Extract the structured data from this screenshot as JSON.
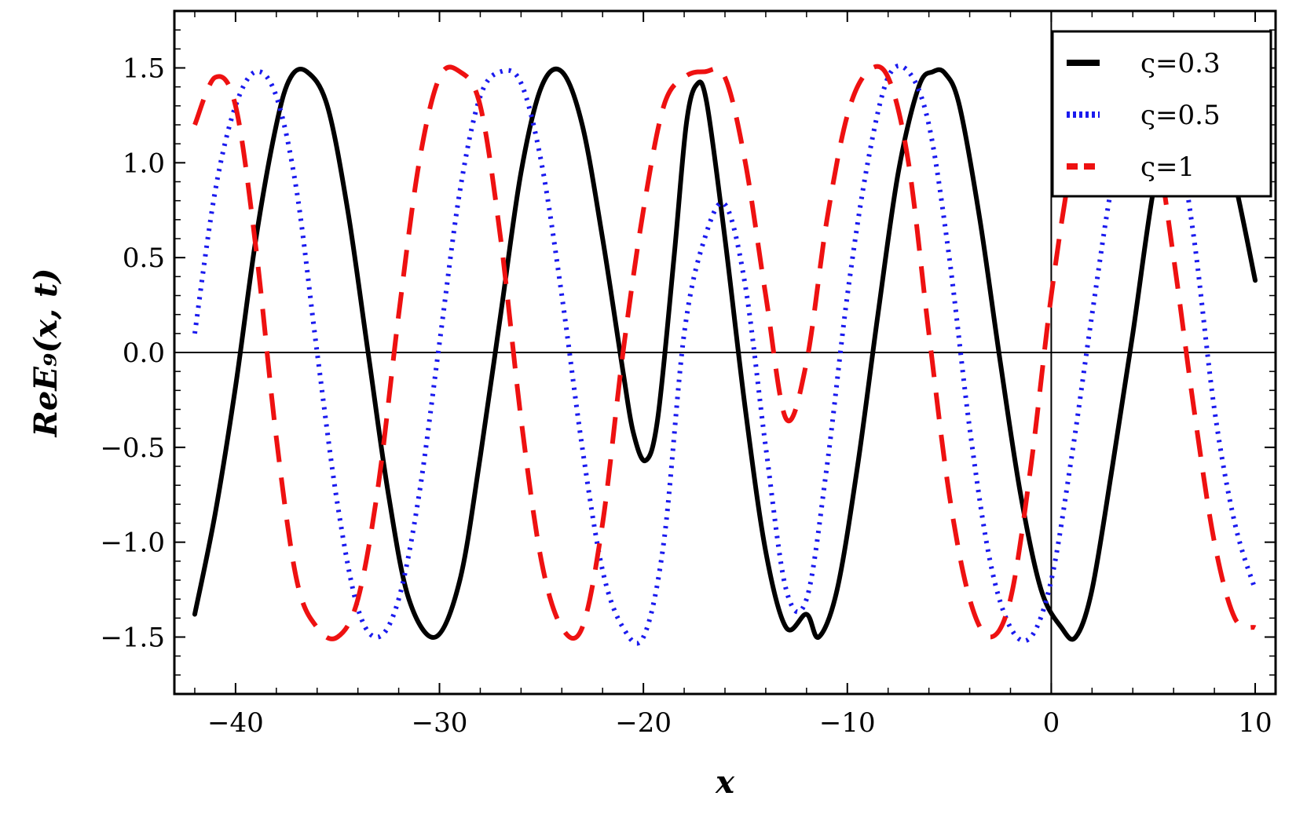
{
  "chart_data": {
    "type": "line",
    "title": "",
    "xlabel": "x",
    "ylabel": "ReE₉(x, t)",
    "xlim": [
      -43,
      11
    ],
    "ylim": [
      -1.8,
      1.8
    ],
    "x_ticks": [
      -40,
      -30,
      -20,
      -10,
      0,
      10
    ],
    "x_tick_labels": [
      "−40",
      "−30",
      "−20",
      "−10",
      "0",
      "10"
    ],
    "y_ticks": [
      1.5,
      1.0,
      0.5,
      0.0,
      -0.5,
      -1.0,
      -1.5
    ],
    "y_tick_labels": [
      "1.5",
      "1.0",
      "0.5",
      "0.0",
      "−0.5",
      "−1.0",
      "−1.5"
    ],
    "grid": false,
    "legend_position": "top-right",
    "series": [
      {
        "name": "ς=0.3",
        "color": "#000000",
        "style": "solid",
        "x": [
          -42.0,
          -41.0,
          -40.0,
          -39.0,
          -38.0,
          -37.3,
          -36.5,
          -35.5,
          -34.5,
          -33.5,
          -32.5,
          -31.5,
          -30.2,
          -29.0,
          -28.0,
          -27.0,
          -26.0,
          -25.0,
          -24.0,
          -23.0,
          -22.0,
          -21.0,
          -20.5,
          -19.9,
          -19.3,
          -18.5,
          -17.9,
          -17.4,
          -16.9,
          -16.0,
          -15.0,
          -14.0,
          -13.0,
          -12.0,
          -11.4,
          -10.5,
          -9.5,
          -8.5,
          -7.5,
          -6.5,
          -5.8,
          -5.2,
          -4.5,
          -3.5,
          -2.5,
          -1.5,
          -0.5,
          0.5,
          1.2,
          2.0,
          3.0,
          4.0,
          5.0,
          6.0,
          7.0,
          8.0,
          9.0,
          10.0
        ],
        "y": [
          -1.38,
          -0.85,
          -0.18,
          0.6,
          1.2,
          1.45,
          1.48,
          1.3,
          0.75,
          0.0,
          -0.75,
          -1.3,
          -1.5,
          -1.2,
          -0.55,
          0.2,
          0.95,
          1.4,
          1.48,
          1.2,
          0.6,
          -0.1,
          -0.42,
          -0.57,
          -0.35,
          0.5,
          1.2,
          1.41,
          1.32,
          0.6,
          -0.3,
          -1.05,
          -1.45,
          -1.38,
          -1.5,
          -1.25,
          -0.6,
          0.2,
          0.95,
          1.4,
          1.48,
          1.47,
          1.3,
          0.7,
          -0.05,
          -0.75,
          -1.25,
          -1.45,
          -1.5,
          -1.25,
          -0.6,
          0.1,
          0.85,
          1.35,
          1.5,
          1.3,
          0.9,
          0.38
        ]
      },
      {
        "name": "ς=0.5",
        "color": "#1a1aee",
        "style": "dotted",
        "x": [
          -42.0,
          -41.0,
          -40.0,
          -39.0,
          -38.0,
          -37.0,
          -36.0,
          -35.0,
          -34.0,
          -33.0,
          -32.0,
          -31.0,
          -30.0,
          -29.0,
          -28.0,
          -27.0,
          -26.0,
          -25.0,
          -24.0,
          -23.0,
          -22.0,
          -21.0,
          -20.0,
          -19.0,
          -18.0,
          -17.0,
          -16.0,
          -15.0,
          -14.0,
          -13.0,
          -12.0,
          -11.0,
          -10.0,
          -9.0,
          -8.0,
          -7.0,
          -6.0,
          -5.0,
          -4.0,
          -3.0,
          -2.0,
          -1.0,
          0.0,
          1.0,
          2.0,
          3.0,
          4.0,
          5.0,
          6.0,
          7.0,
          8.0,
          9.0,
          10.0
        ],
        "y": [
          0.1,
          0.85,
          1.3,
          1.48,
          1.35,
          0.85,
          0.0,
          -0.8,
          -1.35,
          -1.5,
          -1.3,
          -0.75,
          0.05,
          0.85,
          1.35,
          1.48,
          1.42,
          1.0,
          0.3,
          -0.5,
          -1.15,
          -1.45,
          -1.5,
          -1.0,
          0.1,
          0.6,
          0.78,
          0.35,
          -0.5,
          -1.25,
          -1.3,
          -0.6,
          0.3,
          1.0,
          1.45,
          1.48,
          1.2,
          0.5,
          -0.4,
          -1.1,
          -1.45,
          -1.5,
          -1.2,
          -0.55,
          0.2,
          0.9,
          1.35,
          1.5,
          1.25,
          0.6,
          -0.3,
          -0.9,
          -1.25
        ]
      },
      {
        "name": "ς=1",
        "color": "#ee1111",
        "style": "dashed",
        "x": [
          -42.0,
          -41.0,
          -40.0,
          -39.0,
          -38.0,
          -37.0,
          -36.0,
          -35.0,
          -34.0,
          -33.0,
          -32.0,
          -31.0,
          -30.0,
          -29.0,
          -28.0,
          -27.0,
          -26.0,
          -25.0,
          -24.0,
          -23.0,
          -22.0,
          -21.0,
          -20.0,
          -19.0,
          -18.0,
          -17.0,
          -16.0,
          -15.0,
          -14.0,
          -13.0,
          -12.0,
          -11.0,
          -10.0,
          -9.0,
          -8.0,
          -7.0,
          -6.0,
          -5.0,
          -4.0,
          -3.0,
          -2.0,
          -1.0,
          0.0,
          1.0,
          2.0,
          3.0,
          4.0,
          5.0,
          6.0,
          7.0,
          8.0,
          9.0,
          10.0
        ],
        "y": [
          1.2,
          1.45,
          1.3,
          0.55,
          -0.45,
          -1.2,
          -1.45,
          -1.5,
          -1.3,
          -0.7,
          0.2,
          1.0,
          1.45,
          1.48,
          1.3,
          0.6,
          -0.35,
          -1.1,
          -1.45,
          -1.45,
          -0.9,
          0.0,
          0.75,
          1.3,
          1.45,
          1.48,
          1.45,
          1.0,
          0.3,
          -0.35,
          -0.05,
          0.7,
          1.25,
          1.48,
          1.45,
          1.0,
          0.1,
          -0.75,
          -1.3,
          -1.5,
          -1.3,
          -0.6,
          0.3,
          1.0,
          1.4,
          1.48,
          1.45,
          1.2,
          0.5,
          -0.3,
          -1.0,
          -1.4,
          -1.45
        ]
      }
    ]
  }
}
